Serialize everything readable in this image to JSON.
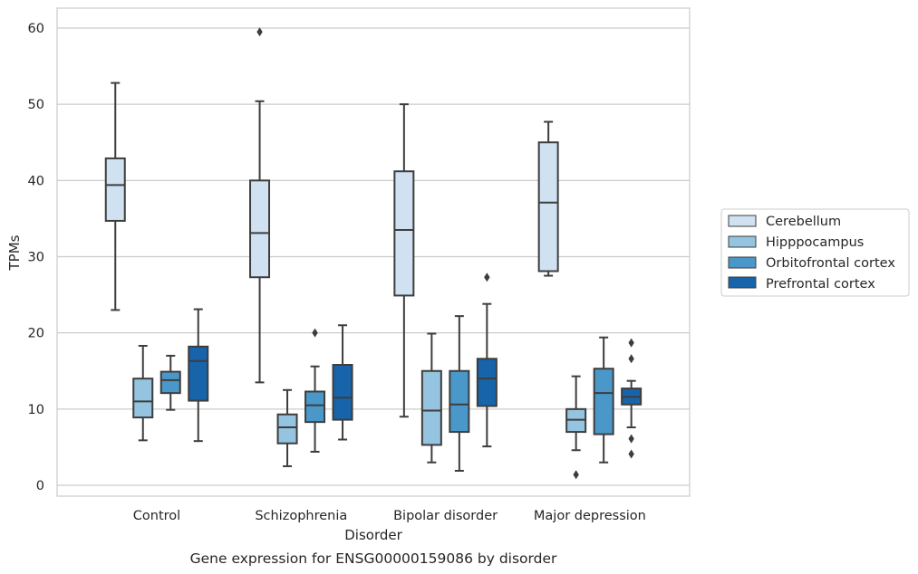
{
  "chart_data": {
    "type": "box",
    "title": "Gene expression for ENSG00000159086 by disorder",
    "xlabel": "Disorder",
    "ylabel": "TPMs",
    "ylim": [
      -1.4,
      62.5
    ],
    "yticks": [
      0,
      10,
      20,
      30,
      40,
      50,
      60
    ],
    "grid": true,
    "legend_position": "right",
    "categories": [
      "Control",
      "Schizophrenia",
      "Bipolar disorder",
      "Major depression"
    ],
    "series": [
      {
        "name": "Cerebellum",
        "color": "#d0e1f2",
        "boxes": [
          {
            "whisker_low": 23.0,
            "q1": 34.7,
            "median": 39.4,
            "q3": 42.9,
            "whisker_high": 52.8,
            "outliers": []
          },
          {
            "whisker_low": 13.5,
            "q1": 27.3,
            "median": 33.1,
            "q3": 40.0,
            "whisker_high": 50.4,
            "outliers": [
              59.5
            ]
          },
          {
            "whisker_low": 9.0,
            "q1": 24.9,
            "median": 33.5,
            "q3": 41.2,
            "whisker_high": 50.0,
            "outliers": []
          },
          {
            "whisker_low": 27.5,
            "q1": 28.1,
            "median": 37.1,
            "q3": 45.0,
            "whisker_high": 47.7,
            "outliers": []
          }
        ]
      },
      {
        "name": "Hipppocampus",
        "color": "#94c4df",
        "boxes": [
          {
            "whisker_low": 5.9,
            "q1": 8.9,
            "median": 11.0,
            "q3": 14.0,
            "whisker_high": 18.3,
            "outliers": []
          },
          {
            "whisker_low": 2.5,
            "q1": 5.5,
            "median": 7.6,
            "q3": 9.3,
            "whisker_high": 12.5,
            "outliers": []
          },
          {
            "whisker_low": 3.0,
            "q1": 5.3,
            "median": 9.8,
            "q3": 15.0,
            "whisker_high": 19.9,
            "outliers": []
          },
          {
            "whisker_low": 4.6,
            "q1": 7.0,
            "median": 8.6,
            "q3": 10.0,
            "whisker_high": 14.3,
            "outliers": [
              1.4
            ]
          }
        ]
      },
      {
        "name": "Orbitofrontal cortex",
        "color": "#4a98c9",
        "boxes": [
          {
            "whisker_low": 9.9,
            "q1": 12.1,
            "median": 13.8,
            "q3": 14.9,
            "whisker_high": 17.0,
            "outliers": []
          },
          {
            "whisker_low": 4.4,
            "q1": 8.3,
            "median": 10.5,
            "q3": 12.3,
            "whisker_high": 15.6,
            "outliers": [
              20.0
            ]
          },
          {
            "whisker_low": 1.9,
            "q1": 7.0,
            "median": 10.6,
            "q3": 15.0,
            "whisker_high": 22.2,
            "outliers": []
          },
          {
            "whisker_low": 3.0,
            "q1": 6.7,
            "median": 12.1,
            "q3": 15.3,
            "whisker_high": 19.4,
            "outliers": []
          }
        ]
      },
      {
        "name": "Prefrontal cortex",
        "color": "#1764ab",
        "boxes": [
          {
            "whisker_low": 5.8,
            "q1": 11.1,
            "median": 16.3,
            "q3": 18.2,
            "whisker_high": 23.1,
            "outliers": []
          },
          {
            "whisker_low": 6.0,
            "q1": 8.6,
            "median": 11.5,
            "q3": 15.8,
            "whisker_high": 21.0,
            "outliers": []
          },
          {
            "whisker_low": 5.1,
            "q1": 10.4,
            "median": 14.0,
            "q3": 16.6,
            "whisker_high": 23.8,
            "outliers": [
              27.3
            ]
          },
          {
            "whisker_low": 7.6,
            "q1": 10.6,
            "median": 11.6,
            "q3": 12.7,
            "whisker_high": 13.7,
            "outliers": [
              18.7,
              16.6,
              6.1,
              4.1
            ]
          }
        ]
      }
    ]
  }
}
